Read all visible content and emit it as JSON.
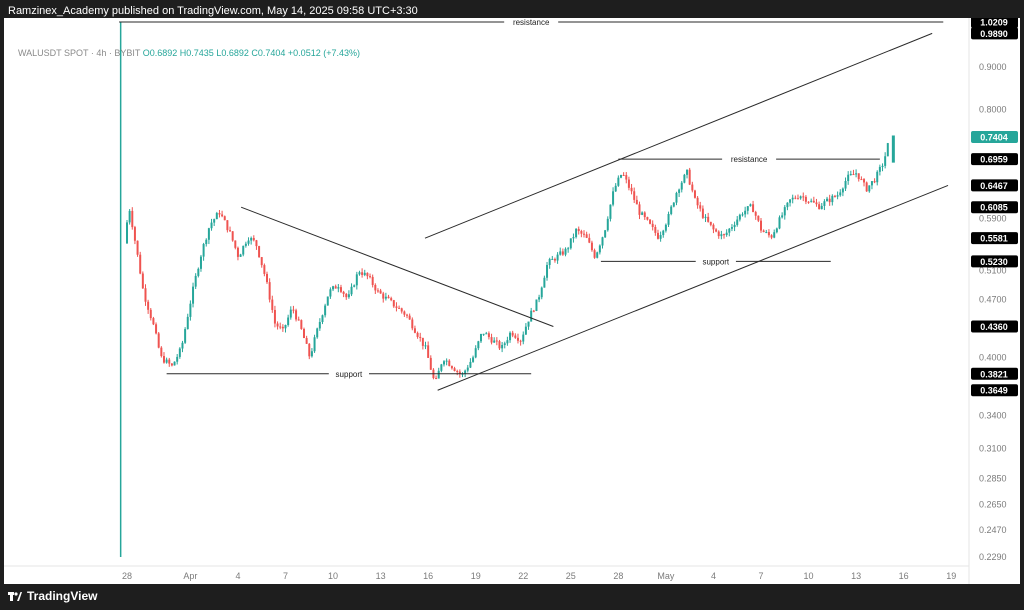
{
  "header": {
    "publisher_text": "Ramzinex_Academy published on TradingView.com, May 14, 2025 09:58 UTC+3:30"
  },
  "legend": {
    "symbol": "WALUSDT SPOT · 4h · BYBIT",
    "open": "O0.6892",
    "high": "H0.7435",
    "low": "L0.6892",
    "close": "C0.7404",
    "change": "+0.0512 (+7.43%)"
  },
  "footer": {
    "brand": "TradingView"
  },
  "colors": {
    "up": "#26a69a",
    "down": "#ef5350",
    "line": "#2a2a2a",
    "last_price": "#26a69a",
    "badge": "#000000"
  },
  "chart_data": {
    "type": "line",
    "subtype": "candlestick",
    "symbol": "WALUSDT",
    "timeframe": "4h",
    "ylim": [
      0.21,
      1.0209
    ],
    "y_ticks": [
      "1.0209",
      "0.9890",
      "0.9000",
      "0.8000",
      "0.7404",
      "0.6959",
      "0.6467",
      "0.6085",
      "0.5900",
      "0.5581",
      "0.5230",
      "0.5100",
      "0.4700",
      "0.4360",
      "0.4000",
      "0.3821",
      "0.3649",
      "0.3400",
      "0.3100",
      "0.2850",
      "0.2650",
      "0.2470",
      "0.2290"
    ],
    "y_tick_values": [
      1.0209,
      0.989,
      0.9,
      0.8,
      0.7404,
      0.6959,
      0.6467,
      0.6085,
      0.59,
      0.5581,
      0.523,
      0.51,
      0.47,
      0.436,
      0.4,
      0.3821,
      0.3649,
      0.34,
      0.31,
      0.285,
      0.265,
      0.247,
      0.229
    ],
    "badge_values": [
      "1.0209",
      "0.9890",
      "0.7404",
      "0.6959",
      "0.6467",
      "0.6085",
      "0.5581",
      "0.5230",
      "0.4360",
      "0.3821",
      "0.3649"
    ],
    "last_price": "0.7404",
    "x_ticks": [
      {
        "label": "28",
        "day": 0
      },
      {
        "label": "Apr",
        "day": 4
      },
      {
        "label": "4",
        "day": 7
      },
      {
        "label": "7",
        "day": 10
      },
      {
        "label": "10",
        "day": 13
      },
      {
        "label": "13",
        "day": 16
      },
      {
        "label": "16",
        "day": 19
      },
      {
        "label": "19",
        "day": 22
      },
      {
        "label": "22",
        "day": 25
      },
      {
        "label": "25",
        "day": 28
      },
      {
        "label": "28",
        "day": 31
      },
      {
        "label": "May",
        "day": 34
      },
      {
        "label": "4",
        "day": 37
      },
      {
        "label": "7",
        "day": 40
      },
      {
        "label": "10",
        "day": 43
      },
      {
        "label": "13",
        "day": 46
      },
      {
        "label": "16",
        "day": 49
      },
      {
        "label": "19",
        "day": 52
      }
    ],
    "x_unit": "days since Mar 28",
    "price_path": [
      [
        -0.5,
        0.25
      ],
      [
        -0.3,
        0.36
      ],
      [
        0,
        0.55
      ],
      [
        0.3,
        0.61
      ],
      [
        0.7,
        0.55
      ],
      [
        1.2,
        0.48
      ],
      [
        1.8,
        0.44
      ],
      [
        2.3,
        0.4
      ],
      [
        3.0,
        0.39
      ],
      [
        3.6,
        0.41
      ],
      [
        4.2,
        0.47
      ],
      [
        4.8,
        0.53
      ],
      [
        5.4,
        0.58
      ],
      [
        6.0,
        0.6
      ],
      [
        6.6,
        0.57
      ],
      [
        7.2,
        0.53
      ],
      [
        7.8,
        0.56
      ],
      [
        8.3,
        0.55
      ],
      [
        8.9,
        0.5
      ],
      [
        9.5,
        0.44
      ],
      [
        10.0,
        0.43
      ],
      [
        10.6,
        0.46
      ],
      [
        11.2,
        0.43
      ],
      [
        11.7,
        0.4
      ],
      [
        12.3,
        0.44
      ],
      [
        12.9,
        0.48
      ],
      [
        13.5,
        0.49
      ],
      [
        14.1,
        0.47
      ],
      [
        14.8,
        0.51
      ],
      [
        15.4,
        0.5
      ],
      [
        16.0,
        0.48
      ],
      [
        16.6,
        0.47
      ],
      [
        17.2,
        0.46
      ],
      [
        17.8,
        0.45
      ],
      [
        18.4,
        0.43
      ],
      [
        19.0,
        0.41
      ],
      [
        19.6,
        0.37
      ],
      [
        20.1,
        0.4
      ],
      [
        20.7,
        0.39
      ],
      [
        21.3,
        0.38
      ],
      [
        22.0,
        0.4
      ],
      [
        22.6,
        0.43
      ],
      [
        23.2,
        0.42
      ],
      [
        23.8,
        0.41
      ],
      [
        24.4,
        0.43
      ],
      [
        25.0,
        0.42
      ],
      [
        25.6,
        0.45
      ],
      [
        26.1,
        0.47
      ],
      [
        26.7,
        0.52
      ],
      [
        27.3,
        0.53
      ],
      [
        27.9,
        0.54
      ],
      [
        28.5,
        0.57
      ],
      [
        29.1,
        0.56
      ],
      [
        29.7,
        0.53
      ],
      [
        30.3,
        0.57
      ],
      [
        30.9,
        0.64
      ],
      [
        31.4,
        0.67
      ],
      [
        31.9,
        0.64
      ],
      [
        32.5,
        0.6
      ],
      [
        33.1,
        0.58
      ],
      [
        33.7,
        0.56
      ],
      [
        34.3,
        0.59
      ],
      [
        34.9,
        0.64
      ],
      [
        35.5,
        0.67
      ],
      [
        36.0,
        0.62
      ],
      [
        36.6,
        0.59
      ],
      [
        37.2,
        0.57
      ],
      [
        37.8,
        0.56
      ],
      [
        38.4,
        0.58
      ],
      [
        39.0,
        0.6
      ],
      [
        39.6,
        0.61
      ],
      [
        40.2,
        0.57
      ],
      [
        40.8,
        0.56
      ],
      [
        41.4,
        0.59
      ],
      [
        42.0,
        0.62
      ],
      [
        42.6,
        0.63
      ],
      [
        43.2,
        0.62
      ],
      [
        43.8,
        0.61
      ],
      [
        44.4,
        0.62
      ],
      [
        45.0,
        0.63
      ],
      [
        45.6,
        0.66
      ],
      [
        46.2,
        0.67
      ],
      [
        46.8,
        0.64
      ],
      [
        47.4,
        0.66
      ],
      [
        47.9,
        0.69
      ],
      [
        48.3,
        0.74
      ]
    ],
    "annotations": [
      {
        "label": "resistance",
        "y": 1.0209,
        "x_range": [
          -0.5,
          51.5
        ]
      },
      {
        "label": "resistance",
        "y": 0.6959,
        "x_range": [
          31.0,
          47.5
        ]
      },
      {
        "label": "support",
        "y": 0.523,
        "x_range": [
          29.9,
          44.4
        ]
      },
      {
        "label": "support",
        "y": 0.3821,
        "x_range": [
          2.5,
          25.5
        ]
      }
    ],
    "trendlines": [
      {
        "from": [
          7.2,
          0.6085
        ],
        "to": [
          26.9,
          0.436
        ]
      },
      {
        "from": [
          19.6,
          0.3649
        ],
        "to": [
          51.8,
          0.6467
        ]
      },
      {
        "from": [
          18.8,
          0.5581
        ],
        "to": [
          50.8,
          0.989
        ]
      }
    ]
  }
}
